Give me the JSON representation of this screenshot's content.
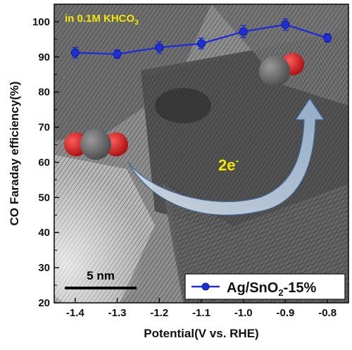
{
  "chart_data": {
    "type": "line",
    "title": "",
    "xlabel": "Potential(V vs. RHE)",
    "ylabel": "CO Faraday efficiency(%)",
    "xlim": [
      -1.45,
      -0.75
    ],
    "ylim": [
      20,
      105
    ],
    "x_ticks": [
      -1.4,
      -1.3,
      -1.2,
      -1.1,
      -1.0,
      -0.9,
      -0.8
    ],
    "x_tick_labels": [
      "-1.4",
      "-1.3",
      "-1.2",
      "-1.1",
      "-1.0",
      "-0.9",
      "-0.8"
    ],
    "y_ticks": [
      20,
      30,
      40,
      50,
      60,
      70,
      80,
      90,
      100
    ],
    "y_tick_labels": [
      "20",
      "30",
      "40",
      "50",
      "60",
      "70",
      "80",
      "90",
      "100"
    ],
    "grid": false,
    "legend_position": "bottom-right",
    "series": [
      {
        "name": "Ag/SnO2-15%",
        "name_base": "Ag/SnO",
        "name_sub": "2",
        "name_tail": "-15%",
        "color": "#1f2fd6",
        "marker": "circle",
        "x": [
          -1.4,
          -1.3,
          -1.2,
          -1.1,
          -1.0,
          -0.9,
          -0.8
        ],
        "y": [
          91.2,
          90.8,
          92.7,
          93.8,
          97.2,
          99.2,
          95.4
        ],
        "error": [
          1.5,
          1.2,
          1.6,
          1.5,
          1.7,
          1.6,
          1.2
        ]
      }
    ],
    "annotations": {
      "electrolyte": {
        "base": "in 0.1M KHCO",
        "sub": "3"
      },
      "electrons": {
        "base": "2e",
        "sup": "-"
      },
      "scale_bar": "5 nm"
    }
  },
  "colors": {
    "annotation_yellow": "#f5e600",
    "co2_carbon": "#6e6e6e",
    "oxygen": "#d81d1d",
    "arrow_fill": "#b7cde6",
    "arrow_stroke": "#3d6a9a"
  }
}
